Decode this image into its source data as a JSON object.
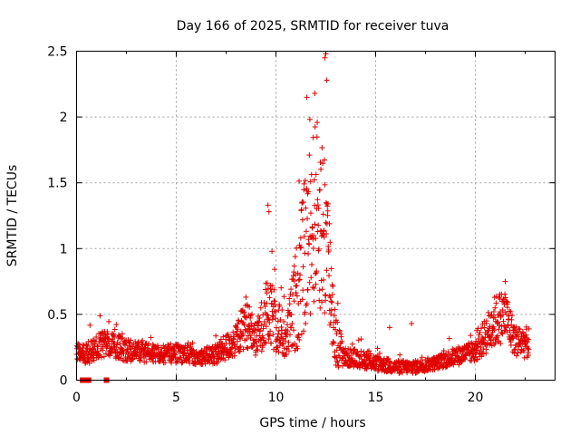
{
  "chart_data": {
    "type": "scatter",
    "title": "Day 166 of 2025, SRMTID for receiver tuva",
    "xlabel": "GPS time / hours",
    "ylabel": "SRMTID / TECUs",
    "xlim": [
      0,
      24
    ],
    "ylim": [
      0,
      2.5
    ],
    "xticks": [
      0,
      5,
      10,
      15,
      20
    ],
    "yticks": [
      0,
      0.5,
      1,
      1.5,
      2,
      2.5
    ],
    "xtick_labels": [
      "0",
      "5",
      "10",
      "15",
      "20"
    ],
    "ytick_labels": [
      "0",
      "0.5",
      "1",
      "1.5",
      "2",
      "2.5"
    ],
    "grid": true,
    "marker": "+",
    "color": "#e00000",
    "series": [
      {
        "name": "SRMTID",
        "baseline_points": [
          [
            0.3,
            0.0
          ],
          [
            0.45,
            0.0
          ],
          [
            0.6,
            0.0
          ],
          [
            1.5,
            0.0
          ]
        ],
        "profile": [
          [
            0.0,
            0.22,
            0.06
          ],
          [
            0.5,
            0.2,
            0.08
          ],
          [
            1.0,
            0.25,
            0.1
          ],
          [
            1.5,
            0.28,
            0.1
          ],
          [
            2.0,
            0.25,
            0.1
          ],
          [
            3.0,
            0.22,
            0.08
          ],
          [
            4.0,
            0.2,
            0.07
          ],
          [
            5.0,
            0.2,
            0.07
          ],
          [
            5.5,
            0.2,
            0.08
          ],
          [
            6.0,
            0.17,
            0.05
          ],
          [
            7.0,
            0.2,
            0.08
          ],
          [
            7.5,
            0.25,
            0.1
          ],
          [
            8.0,
            0.3,
            0.12
          ],
          [
            8.5,
            0.45,
            0.2
          ],
          [
            9.0,
            0.3,
            0.12
          ],
          [
            9.5,
            0.5,
            0.25
          ],
          [
            10.0,
            0.45,
            0.25
          ],
          [
            10.5,
            0.3,
            0.15
          ],
          [
            11.0,
            0.6,
            0.4
          ],
          [
            11.5,
            1.0,
            0.6
          ],
          [
            12.0,
            1.3,
            0.7
          ],
          [
            12.5,
            1.1,
            0.7
          ],
          [
            13.0,
            0.3,
            0.2
          ],
          [
            13.5,
            0.17,
            0.07
          ],
          [
            14.0,
            0.17,
            0.07
          ],
          [
            15.0,
            0.13,
            0.06
          ],
          [
            16.0,
            0.1,
            0.05
          ],
          [
            17.0,
            0.1,
            0.05
          ],
          [
            18.0,
            0.13,
            0.05
          ],
          [
            19.0,
            0.18,
            0.07
          ],
          [
            20.0,
            0.22,
            0.08
          ],
          [
            21.0,
            0.45,
            0.2
          ],
          [
            21.5,
            0.5,
            0.2
          ],
          [
            22.0,
            0.3,
            0.12
          ],
          [
            22.7,
            0.28,
            0.12
          ]
        ],
        "spikes": [
          [
            9.6,
            1.33
          ],
          [
            9.65,
            1.28
          ],
          [
            9.8,
            0.98
          ],
          [
            12.45,
            2.45
          ],
          [
            12.5,
            2.48
          ],
          [
            12.55,
            2.28
          ],
          [
            11.55,
            2.15
          ],
          [
            11.95,
            2.18
          ],
          [
            16.8,
            0.43
          ],
          [
            15.7,
            0.4
          ],
          [
            21.5,
            0.75
          ]
        ]
      }
    ]
  }
}
